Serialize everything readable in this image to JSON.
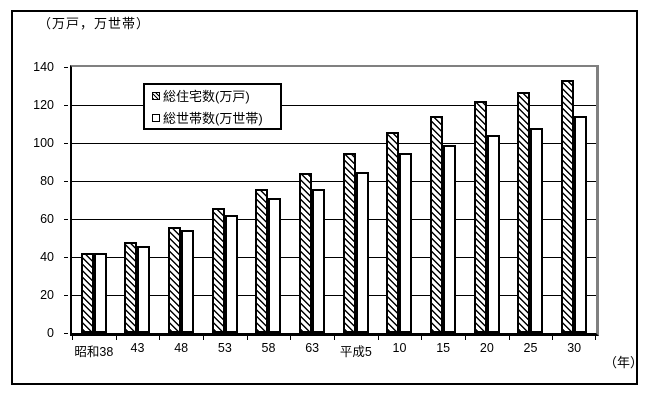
{
  "figure": {
    "y_unit_label": "（万戸，万世帯）",
    "x_unit_label": "（年）"
  },
  "legend": {
    "items": [
      {
        "label": "総住宅数(万戸)",
        "swatch": "hatched-square-icon"
      },
      {
        "label": "総世帯数(万世帯)",
        "swatch": "white-square-icon"
      }
    ]
  },
  "chart_data": {
    "type": "bar",
    "title": "",
    "ylabel": "（万戸，万世帯）",
    "xlabel": "（年）",
    "categories": [
      "昭和38",
      "43",
      "48",
      "53",
      "58",
      "63",
      "平成5",
      "10",
      "15",
      "20",
      "25",
      "30"
    ],
    "series": [
      {
        "name": "総住宅数(万戸)",
        "pattern": "diagonal-hatch",
        "values": [
          42,
          48,
          56,
          66,
          76,
          84,
          95,
          106,
          114,
          122,
          127,
          133
        ]
      },
      {
        "name": "総世帯数(万世帯)",
        "pattern": "white",
        "values": [
          42,
          46,
          54,
          62,
          71,
          76,
          85,
          95,
          99,
          104,
          108,
          114
        ]
      }
    ],
    "ylim": [
      0,
      140
    ],
    "yticks": [
      0,
      20,
      40,
      60,
      80,
      100,
      120,
      140
    ],
    "grid": true,
    "legend_position": "top-center-inside",
    "colors": {
      "axis": "#000000",
      "plot_border": "#808080",
      "bar_fill": "#ffffff",
      "hatch": "#000000",
      "text": "#000000",
      "background": "#ffffff"
    }
  }
}
